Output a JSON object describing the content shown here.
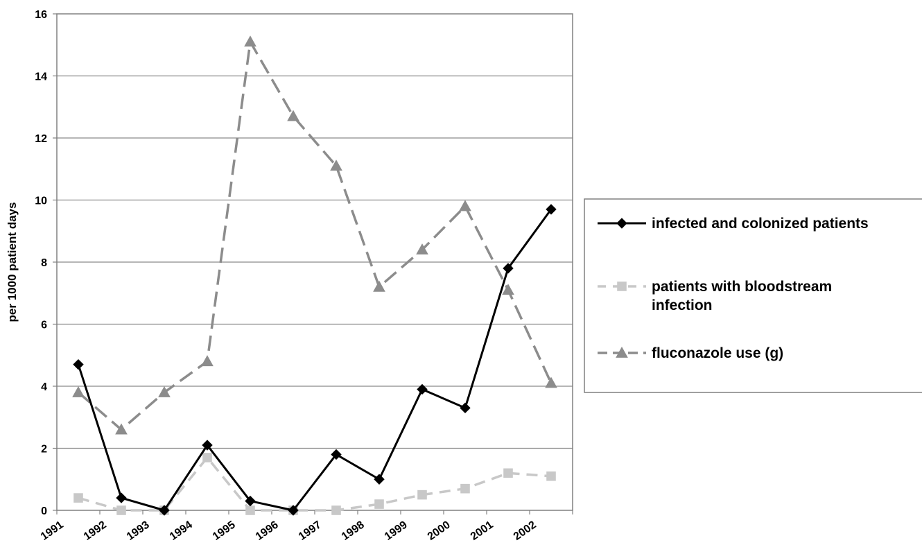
{
  "chart_data": {
    "type": "line",
    "categories": [
      "1991",
      "1992",
      "1993",
      "1994",
      "1995",
      "1996",
      "1997",
      "1998",
      "1999",
      "2000",
      "2001",
      "2002"
    ],
    "ylabel": "per 1000 patient days",
    "xlabel": "",
    "ylim": [
      0,
      16
    ],
    "yticks": [
      0,
      2,
      4,
      6,
      8,
      10,
      12,
      14,
      16
    ],
    "grid": true,
    "legend_position": "right",
    "series": [
      {
        "name": "infected and colonized patients",
        "name_lines": [
          "infected and colonized patients"
        ],
        "color": "#000000",
        "marker": "diamond",
        "dash": "solid",
        "values": [
          4.7,
          0.4,
          0.0,
          2.1,
          0.3,
          0.0,
          1.8,
          1.0,
          3.9,
          3.3,
          7.8,
          9.7
        ]
      },
      {
        "name": "patients with bloodstream infection",
        "name_lines": [
          "patients with bloodstream",
          "infection"
        ],
        "color": "#c8c8c8",
        "marker": "square",
        "dash": "dash",
        "values": [
          0.4,
          0.0,
          0.0,
          1.7,
          0.0,
          0.0,
          0.0,
          0.2,
          0.5,
          0.7,
          1.2,
          1.1
        ]
      },
      {
        "name": "fluconazole use (g)",
        "name_lines": [
          "fluconazole use (g)"
        ],
        "color": "#8c8c8c",
        "marker": "triangle",
        "dash": "longdash",
        "values": [
          3.8,
          2.6,
          3.8,
          4.8,
          15.1,
          12.7,
          11.1,
          7.2,
          8.4,
          9.8,
          7.1,
          4.1
        ]
      }
    ]
  }
}
